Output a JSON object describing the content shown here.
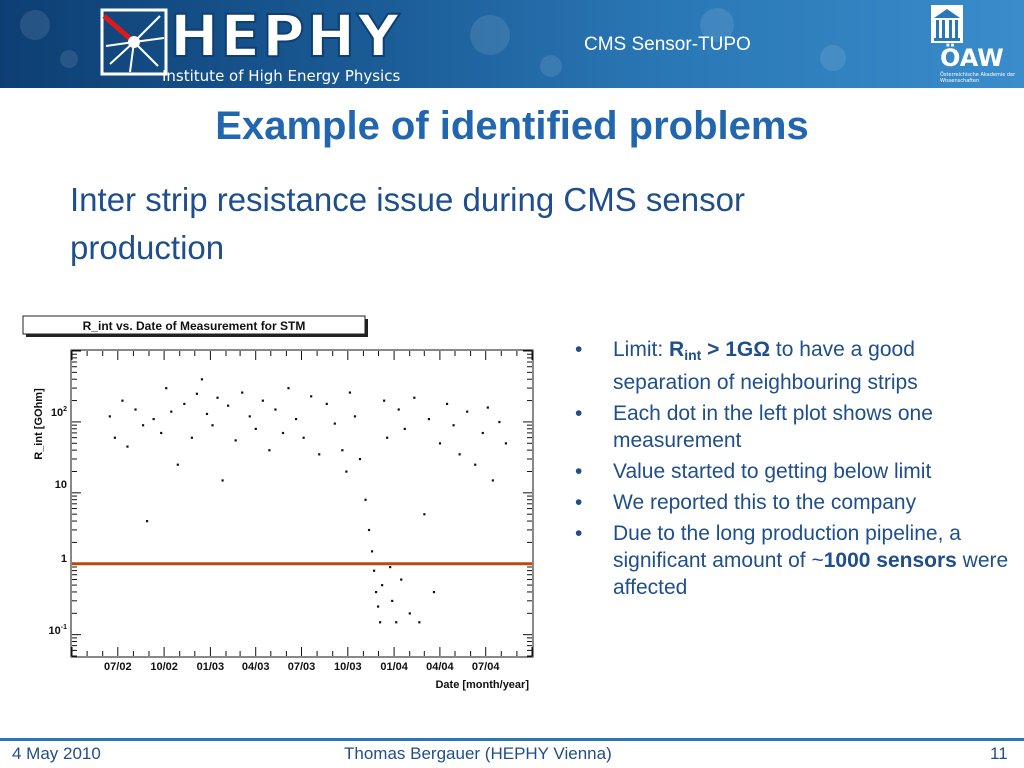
{
  "header": {
    "logo_text": "HEPHY",
    "logo_subtitle": "Institute of High Energy Physics",
    "title": "CMS Sensor-TUPO",
    "oaw_text": "ÖAW",
    "oaw_subtitle": "Österreichische Akademie der Wissenschaften"
  },
  "slide": {
    "title": "Example of identified problems",
    "subtitle_line1": "Inter strip resistance issue during CMS sensor",
    "subtitle_line2": "production"
  },
  "bullets": {
    "b1_prefix": "Limit: ",
    "b1_r": "R",
    "b1_sub": "int",
    "b1_op": " > 1GΩ",
    "b1_rest": " to have a good separation of neighbouring strips",
    "b2": "Each dot in the left plot shows one measurement",
    "b3": "Value started to getting below limit",
    "b4": "We reported this to the company",
    "b5_pre": "Due to the long production pipeline, a significant amount of ~",
    "b5_bold": "1000 sensors",
    "b5_post": " were affected"
  },
  "footer": {
    "date": "4 May 2010",
    "author": "Thomas Bergauer (HEPHY Vienna)",
    "page": "11"
  },
  "colors": {
    "accent": "#2166ae",
    "text": "#1f4e8c",
    "limit_line": "#b84a10",
    "header_dark": "#0d3f73"
  },
  "chart_data": {
    "type": "scatter",
    "title": "R_int vs. Date of Measurement for STM",
    "xlabel": "Date [month/year]",
    "ylabel": "R_int [GOhm]",
    "y_scale": "log",
    "ylim": [
      0.05,
      1000
    ],
    "xlim": [
      "2002-04",
      "2004-10"
    ],
    "x_ticks": [
      "07/02",
      "10/02",
      "01/03",
      "04/03",
      "07/03",
      "10/03",
      "01/04",
      "04/04",
      "07/04"
    ],
    "y_ticks": [
      "10^-1",
      "1",
      "10",
      "10^2"
    ],
    "limit_line": {
      "y": 1,
      "color": "#b84a10"
    },
    "series": [
      {
        "points": [
          [
            "2002-06-15",
            120
          ],
          [
            "2002-06-25",
            60
          ],
          [
            "2002-07-10",
            200
          ],
          [
            "2002-07-20",
            45
          ],
          [
            "2002-08-05",
            150
          ],
          [
            "2002-08-20",
            90
          ],
          [
            "2002-08-28",
            4
          ],
          [
            "2002-09-10",
            110
          ],
          [
            "2002-09-25",
            70
          ],
          [
            "2002-10-05",
            300
          ],
          [
            "2002-10-15",
            140
          ],
          [
            "2002-10-28",
            25
          ],
          [
            "2002-11-10",
            180
          ],
          [
            "2002-11-25",
            60
          ],
          [
            "2002-12-05",
            250
          ],
          [
            "2002-12-15",
            400
          ],
          [
            "2002-12-25",
            130
          ],
          [
            "2003-01-05",
            90
          ],
          [
            "2003-01-15",
            220
          ],
          [
            "2003-01-25",
            15
          ],
          [
            "2003-02-05",
            170
          ],
          [
            "2003-02-20",
            55
          ],
          [
            "2003-03-05",
            260
          ],
          [
            "2003-03-20",
            120
          ],
          [
            "2003-04-01",
            80
          ],
          [
            "2003-04-15",
            200
          ],
          [
            "2003-04-28",
            40
          ],
          [
            "2003-05-10",
            150
          ],
          [
            "2003-05-25",
            70
          ],
          [
            "2003-06-05",
            300
          ],
          [
            "2003-06-20",
            110
          ],
          [
            "2003-07-05",
            60
          ],
          [
            "2003-07-20",
            230
          ],
          [
            "2003-08-05",
            35
          ],
          [
            "2003-08-20",
            180
          ],
          [
            "2003-09-05",
            95
          ],
          [
            "2003-09-20",
            40
          ],
          [
            "2003-09-28",
            20
          ],
          [
            "2003-10-05",
            260
          ],
          [
            "2003-10-15",
            120
          ],
          [
            "2003-10-25",
            30
          ],
          [
            "2003-11-05",
            8
          ],
          [
            "2003-11-12",
            3
          ],
          [
            "2003-11-18",
            1.5
          ],
          [
            "2003-11-22",
            0.8
          ],
          [
            "2003-11-26",
            0.4
          ],
          [
            "2003-11-30",
            0.25
          ],
          [
            "2003-12-04",
            0.15
          ],
          [
            "2003-12-08",
            0.5
          ],
          [
            "2003-12-12",
            200
          ],
          [
            "2003-12-18",
            60
          ],
          [
            "2003-12-24",
            0.9
          ],
          [
            "2003-12-28",
            0.3
          ],
          [
            "2004-01-05",
            0.15
          ],
          [
            "2004-01-10",
            150
          ],
          [
            "2004-01-15",
            0.6
          ],
          [
            "2004-01-22",
            80
          ],
          [
            "2004-02-01",
            0.2
          ],
          [
            "2004-02-10",
            220
          ],
          [
            "2004-02-20",
            0.15
          ],
          [
            "2004-03-01",
            5
          ],
          [
            "2004-03-10",
            110
          ],
          [
            "2004-03-20",
            0.4
          ],
          [
            "2004-04-01",
            50
          ],
          [
            "2004-04-15",
            180
          ],
          [
            "2004-04-28",
            90
          ],
          [
            "2004-05-10",
            35
          ],
          [
            "2004-05-25",
            140
          ],
          [
            "2004-06-10",
            25
          ],
          [
            "2004-06-25",
            70
          ],
          [
            "2004-07-05",
            160
          ],
          [
            "2004-07-15",
            15
          ],
          [
            "2004-07-28",
            100
          ],
          [
            "2004-08-10",
            50
          ]
        ]
      }
    ]
  }
}
